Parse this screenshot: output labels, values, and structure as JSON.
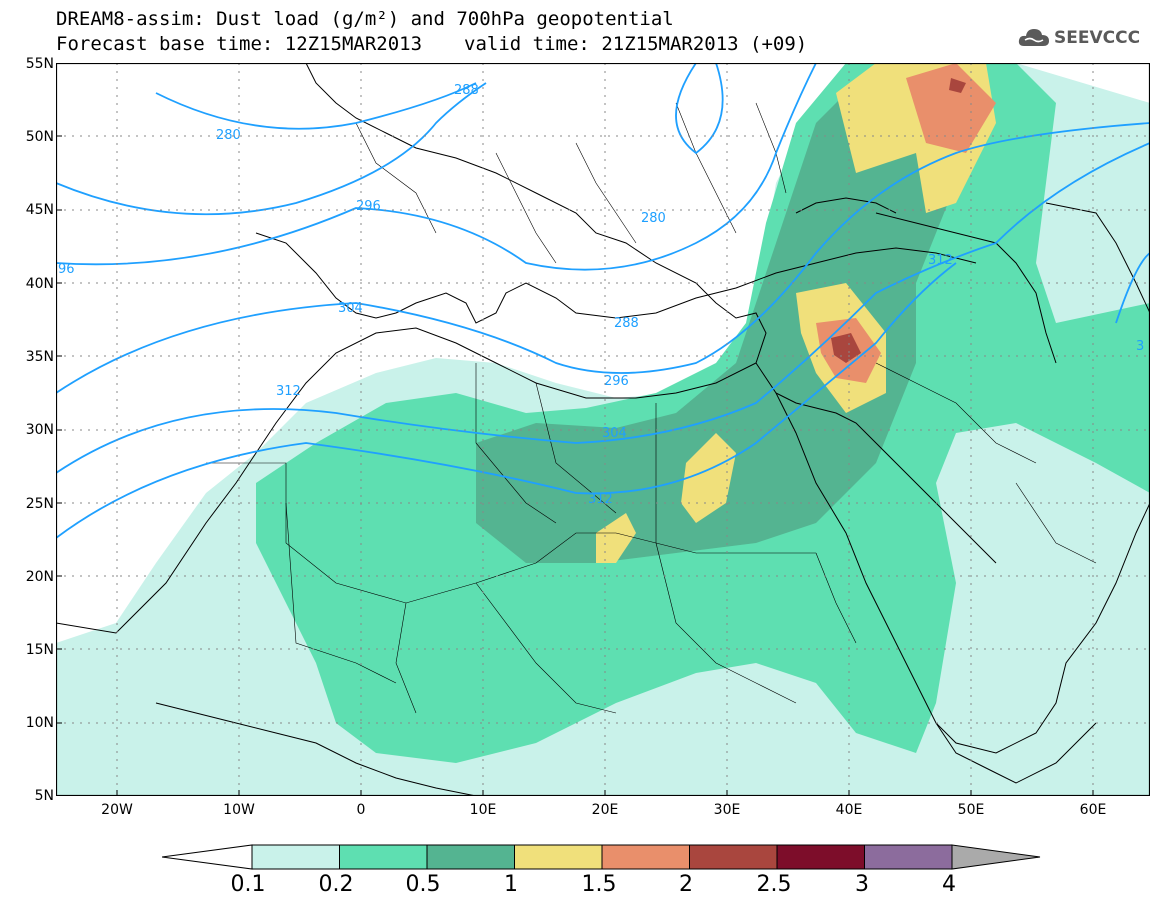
{
  "title_line1": "DREAM8-assim: Dust load (g/m²) and 700hPa geopotential",
  "base_time": "Forecast base time: 12Z15MAR2013",
  "valid_time": "valid time: 21Z15MAR2013 (+09)",
  "logo_text": "SEEVCCC",
  "logo_icon": "cloud-icon",
  "lat_labels": [
    "55N",
    "50N",
    "45N",
    "40N",
    "35N",
    "30N",
    "25N",
    "20N",
    "15N",
    "10N",
    "5N"
  ],
  "lon_labels": [
    "20W",
    "10W",
    "0",
    "10E",
    "20E",
    "30E",
    "40E",
    "50E",
    "60E"
  ],
  "contour_labels": [
    "280",
    "288",
    "296",
    "304",
    "312",
    "280",
    "288",
    "296",
    "304",
    "312",
    "312",
    "96",
    "3"
  ],
  "colorbar_labels": [
    "0.1",
    "0.2",
    "0.5",
    "1",
    "1.5",
    "2",
    "2.5",
    "3",
    "4"
  ],
  "colorbar_colors": [
    "#c9f2ea",
    "#5edfb1",
    "#54b491",
    "#f0e07b",
    "#e98f6b",
    "#a9463e",
    "#7d0d2a",
    "#8c6c9d",
    "#aaaaaa"
  ]
}
